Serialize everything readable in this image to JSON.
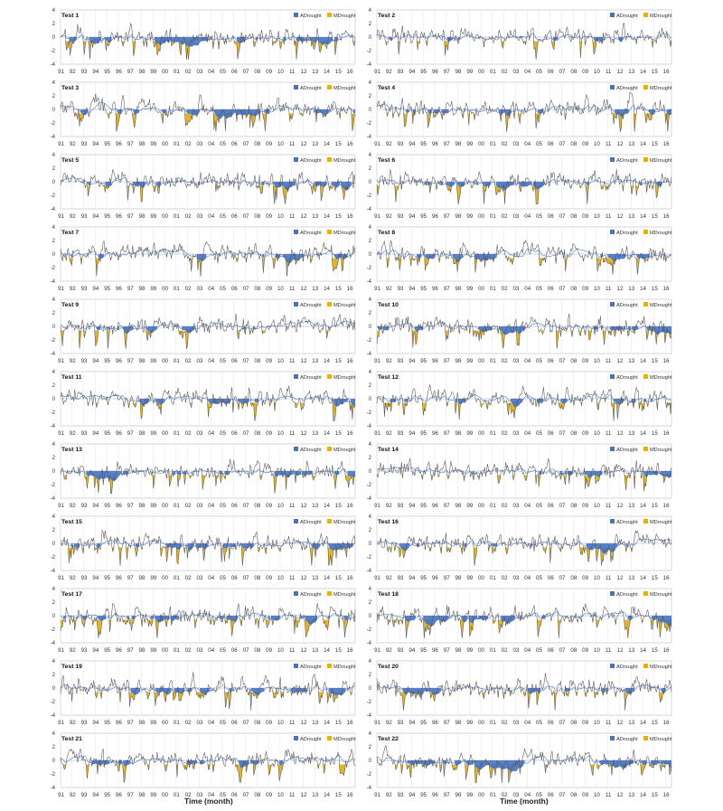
{
  "legend": {
    "adrought": "ADrought",
    "mdrought": "MDrought"
  },
  "colors": {
    "adrought": "#4472C4",
    "mdrought": "#E0B020",
    "line": "#555555",
    "index": "#4472C4",
    "grid": "#E4E4E4",
    "frame": "#BDBDBD"
  },
  "x_axis_title": "Time (month)",
  "chart_data": {
    "type": "area",
    "panel_titles": [
      "Test 1",
      "Test 2",
      "Test 3",
      "Test 4",
      "Test 5",
      "Test 6",
      "Test 7",
      "Test 8",
      "Test 9",
      "Test 10",
      "Test 11",
      "Test 12",
      "Test 13",
      "Test 14",
      "Test 15",
      "Test 16",
      "Test 17",
      "Test 18",
      "Test 19",
      "Test 20",
      "Test 21",
      "Test 22"
    ],
    "x_tick_labels": [
      "91",
      "92",
      "93",
      "94",
      "95",
      "96",
      "97",
      "98",
      "99",
      "00",
      "01",
      "02",
      "03",
      "04",
      "05",
      "06",
      "07",
      "08",
      "09",
      "10",
      "11",
      "12",
      "13",
      "14",
      "15",
      "16"
    ],
    "y_ticks": [
      "4",
      "2",
      "0",
      "-2",
      "-4"
    ],
    "ylim": [
      -4,
      4
    ],
    "grid": true,
    "legend_position": "top-right",
    "series": [
      {
        "name": "ADrought"
      },
      {
        "name": "MDrought"
      }
    ]
  }
}
